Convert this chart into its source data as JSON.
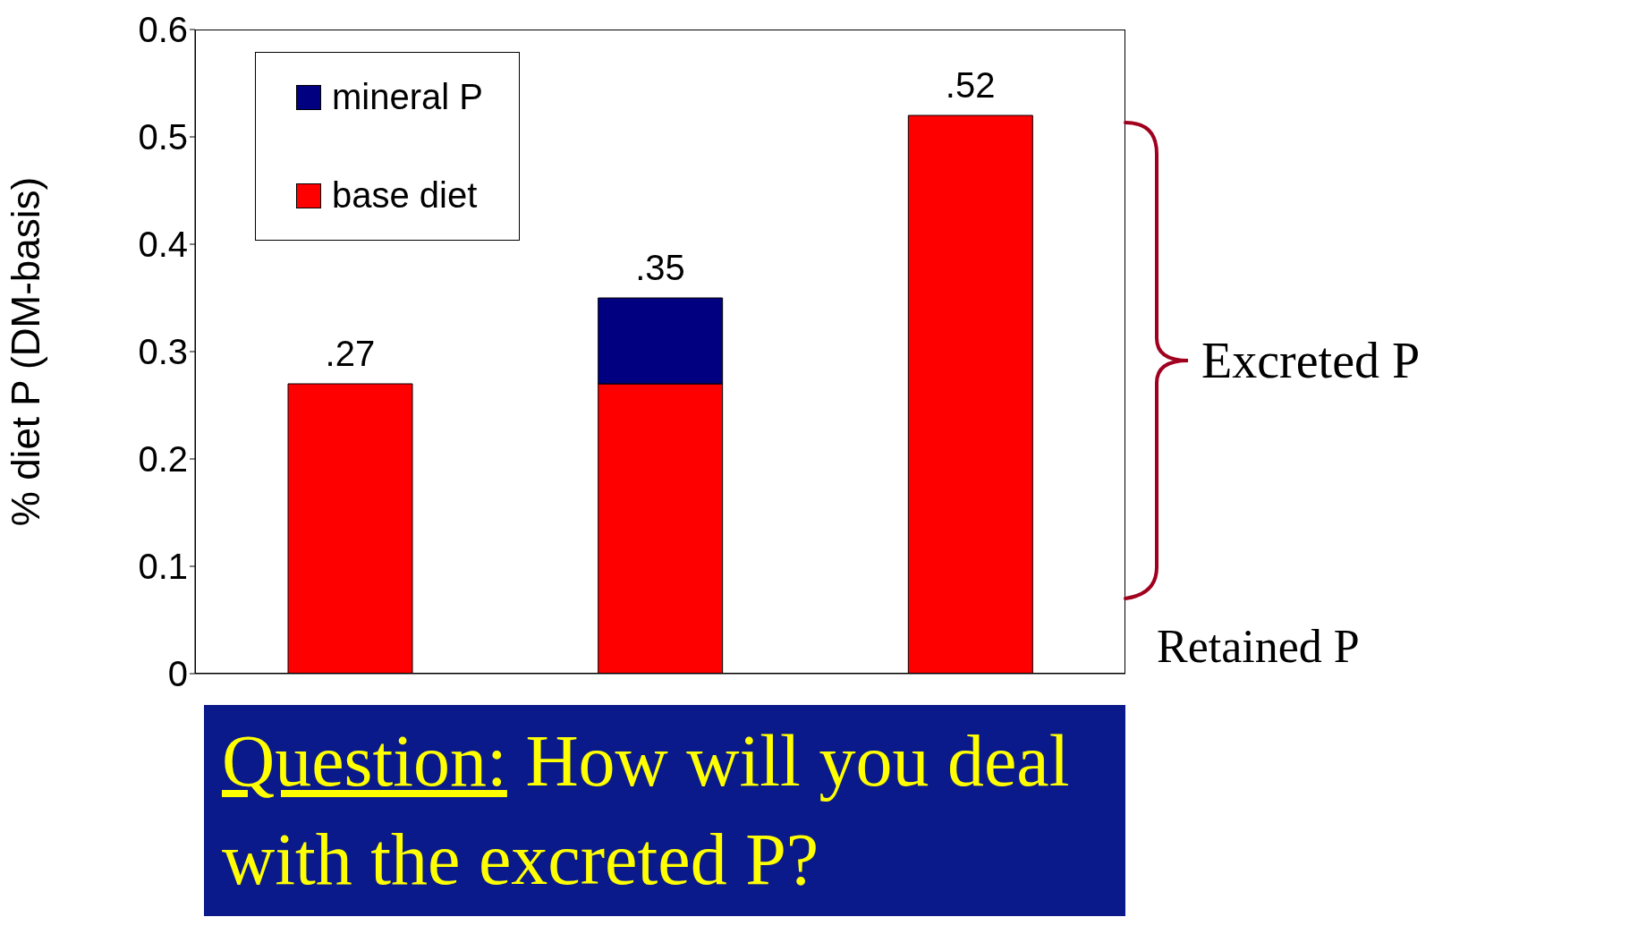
{
  "chart_data": {
    "type": "bar",
    "stacked": true,
    "categories": [
      null,
      null,
      null
    ],
    "series": [
      {
        "name": "base diet",
        "color": "#ff0000",
        "values": [
          0.27,
          0.27,
          0.52
        ]
      },
      {
        "name": "mineral P",
        "color": "#000080",
        "values": [
          null,
          0.08,
          null
        ]
      }
    ],
    "totals": [
      ".27",
      ".35",
      ".52"
    ],
    "ylabel": "% diet P (DM-basis)",
    "ylim": [
      0,
      0.6
    ],
    "yticks": [
      0,
      0.1,
      0.2,
      0.3,
      0.4,
      0.5,
      0.6
    ],
    "legend": "top left",
    "grid": false,
    "annotations": [
      "Excreted P",
      "Retained P",
      "Question: How will you deal with the excreted P?"
    ]
  }
}
